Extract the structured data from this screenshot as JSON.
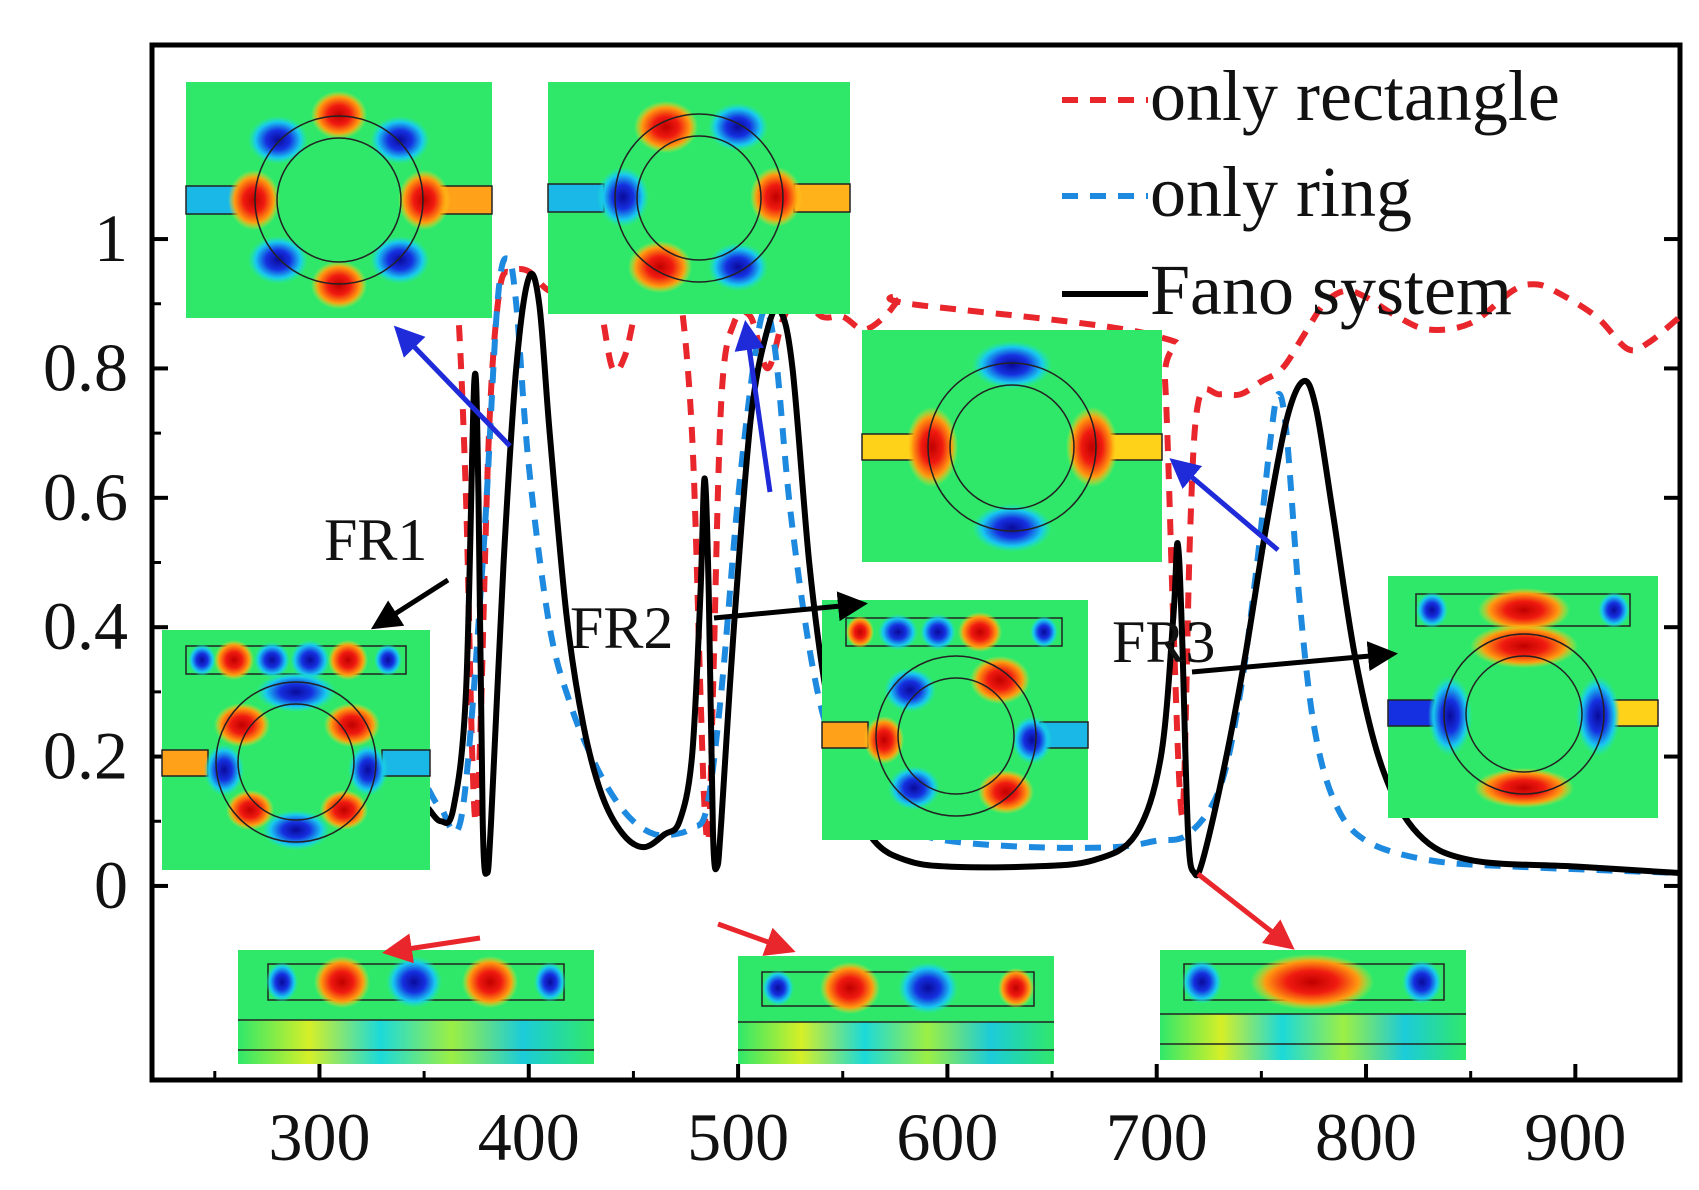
{
  "chart_data": {
    "type": "line",
    "title": "",
    "xlabel": "",
    "ylabel": "",
    "xlim": [
      220,
      950
    ],
    "ylim": [
      -0.3,
      1.3
    ],
    "xticks": [
      300,
      400,
      500,
      600,
      700,
      800,
      900
    ],
    "xtick_labels": [
      "300",
      "400",
      "500",
      "600",
      "700",
      "800",
      "900"
    ],
    "yticks": [
      0,
      0.2,
      0.4,
      0.6,
      0.8,
      1
    ],
    "ytick_labels": [
      "0",
      "0.2",
      "0.4",
      "0.6",
      "0.8",
      "1"
    ],
    "grid": false,
    "legend_position": "top-right",
    "series": [
      {
        "name": "only rectangle",
        "color": "#e8262b",
        "dash": "dashed",
        "points": [
          [
            362,
            0.95
          ],
          [
            366,
            0.9
          ],
          [
            370,
            0.6
          ],
          [
            373,
            0.2
          ],
          [
            375,
            0.1
          ],
          [
            377,
            0.25
          ],
          [
            381,
            0.7
          ],
          [
            386,
            0.92
          ],
          [
            392,
            0.95
          ],
          [
            400,
            0.95
          ],
          [
            410,
            0.92
          ],
          [
            420,
            0.93
          ],
          [
            428,
            0.95
          ],
          [
            434,
            0.9
          ],
          [
            440,
            0.8
          ],
          [
            446,
            0.82
          ],
          [
            452,
            0.9
          ],
          [
            460,
            0.95
          ],
          [
            466,
            0.95
          ],
          [
            472,
            0.92
          ],
          [
            478,
            0.7
          ],
          [
            482,
            0.3
          ],
          [
            484,
            0.12
          ],
          [
            486,
            0.08
          ],
          [
            488,
            0.3
          ],
          [
            492,
            0.75
          ],
          [
            498,
            0.87
          ],
          [
            506,
            0.88
          ],
          [
            514,
            0.8
          ],
          [
            522,
            0.88
          ],
          [
            530,
            0.91
          ],
          [
            540,
            0.88
          ],
          [
            550,
            0.88
          ],
          [
            560,
            0.86
          ],
          [
            570,
            0.88
          ],
          [
            578,
            0.91
          ],
          [
            582,
            0.9
          ],
          [
            700,
            0.85
          ],
          [
            704,
            0.78
          ],
          [
            708,
            0.4
          ],
          [
            711,
            0.15
          ],
          [
            713,
            0.15
          ],
          [
            716,
            0.55
          ],
          [
            720,
            0.75
          ],
          [
            730,
            0.76
          ],
          [
            740,
            0.76
          ],
          [
            750,
            0.78
          ],
          [
            760,
            0.8
          ],
          [
            770,
            0.85
          ],
          [
            780,
            0.9
          ],
          [
            790,
            0.92
          ],
          [
            800,
            0.91
          ],
          [
            815,
            0.88
          ],
          [
            830,
            0.86
          ],
          [
            850,
            0.87
          ],
          [
            870,
            0.92
          ],
          [
            880,
            0.93
          ],
          [
            890,
            0.92
          ],
          [
            910,
            0.88
          ],
          [
            925,
            0.83
          ],
          [
            935,
            0.84
          ],
          [
            950,
            0.88
          ]
        ]
      },
      {
        "name": "only ring",
        "color": "#1d8ae0",
        "dash": "dashed",
        "points": [
          [
            352,
            0.15
          ],
          [
            358,
            0.12
          ],
          [
            368,
            0.11
          ],
          [
            378,
            0.5
          ],
          [
            385,
            0.9
          ],
          [
            390,
            0.97
          ],
          [
            394,
            0.9
          ],
          [
            400,
            0.65
          ],
          [
            410,
            0.4
          ],
          [
            420,
            0.28
          ],
          [
            430,
            0.2
          ],
          [
            440,
            0.14
          ],
          [
            450,
            0.1
          ],
          [
            460,
            0.08
          ],
          [
            470,
            0.08
          ],
          [
            478,
            0.09
          ],
          [
            485,
            0.12
          ],
          [
            492,
            0.3
          ],
          [
            500,
            0.6
          ],
          [
            508,
            0.82
          ],
          [
            513,
            0.89
          ],
          [
            518,
            0.82
          ],
          [
            525,
            0.58
          ],
          [
            535,
            0.35
          ],
          [
            545,
            0.22
          ],
          [
            560,
            0.14
          ],
          [
            580,
            0.09
          ],
          [
            600,
            0.07
          ],
          [
            640,
            0.06
          ],
          [
            680,
            0.06
          ],
          [
            700,
            0.07
          ],
          [
            715,
            0.08
          ],
          [
            730,
            0.15
          ],
          [
            740,
            0.3
          ],
          [
            748,
            0.5
          ],
          [
            754,
            0.68
          ],
          [
            758,
            0.76
          ],
          [
            762,
            0.7
          ],
          [
            768,
            0.45
          ],
          [
            775,
            0.25
          ],
          [
            785,
            0.13
          ],
          [
            800,
            0.07
          ],
          [
            830,
            0.04
          ],
          [
            870,
            0.03
          ],
          [
            950,
            0.02
          ]
        ]
      },
      {
        "name": "Fano system",
        "color": "#000000",
        "dash": "solid",
        "points": [
          [
            352,
            0.12
          ],
          [
            358,
            0.1
          ],
          [
            364,
            0.12
          ],
          [
            370,
            0.3
          ],
          [
            374,
            0.78
          ],
          [
            376,
            0.6
          ],
          [
            378,
            0.1
          ],
          [
            380,
            0.02
          ],
          [
            382,
            0.1
          ],
          [
            388,
            0.5
          ],
          [
            394,
            0.8
          ],
          [
            400,
            0.94
          ],
          [
            405,
            0.9
          ],
          [
            410,
            0.7
          ],
          [
            418,
            0.42
          ],
          [
            426,
            0.25
          ],
          [
            435,
            0.14
          ],
          [
            445,
            0.08
          ],
          [
            455,
            0.06
          ],
          [
            465,
            0.08
          ],
          [
            472,
            0.1
          ],
          [
            478,
            0.2
          ],
          [
            482,
            0.45
          ],
          [
            484,
            0.63
          ],
          [
            486,
            0.45
          ],
          [
            488,
            0.08
          ],
          [
            490,
            0.03
          ],
          [
            492,
            0.1
          ],
          [
            498,
            0.4
          ],
          [
            506,
            0.72
          ],
          [
            514,
            0.86
          ],
          [
            520,
            0.89
          ],
          [
            526,
            0.8
          ],
          [
            534,
            0.5
          ],
          [
            542,
            0.3
          ],
          [
            552,
            0.15
          ],
          [
            565,
            0.07
          ],
          [
            580,
            0.04
          ],
          [
            600,
            0.03
          ],
          [
            640,
            0.03
          ],
          [
            670,
            0.04
          ],
          [
            690,
            0.08
          ],
          [
            702,
            0.2
          ],
          [
            708,
            0.42
          ],
          [
            710,
            0.53
          ],
          [
            712,
            0.4
          ],
          [
            715,
            0.08
          ],
          [
            718,
            0.02
          ],
          [
            722,
            0.04
          ],
          [
            732,
            0.18
          ],
          [
            742,
            0.35
          ],
          [
            752,
            0.55
          ],
          [
            762,
            0.72
          ],
          [
            770,
            0.78
          ],
          [
            776,
            0.74
          ],
          [
            784,
            0.58
          ],
          [
            795,
            0.35
          ],
          [
            808,
            0.18
          ],
          [
            825,
            0.08
          ],
          [
            850,
            0.04
          ],
          [
            900,
            0.03
          ],
          [
            950,
            0.02
          ]
        ]
      }
    ],
    "annotations": [
      {
        "label": "FR1",
        "x": 374,
        "y": 0.78,
        "target": "field-map-fr1"
      },
      {
        "label": "FR2",
        "x": 484,
        "y": 0.63,
        "target": "field-map-fr2"
      },
      {
        "label": "FR3",
        "x": 710,
        "y": 0.53,
        "target": "field-map-fr3"
      }
    ]
  },
  "legend": {
    "rect_label": "only rectangle",
    "ring_label": "only ring",
    "fano_label": "Fano system"
  },
  "annotation_labels": {
    "fr1": "FR1",
    "fr2": "FR2",
    "fr3": "FR3"
  },
  "colors": {
    "rect": "#e8262b",
    "ring": "#1d8ae0",
    "fano": "#000000",
    "blue_arrow": "#1f2bd8",
    "red_arrow": "#e8262b",
    "field_bg": "#2fe86a",
    "field_red": "#e01010",
    "field_blue": "#1020d0",
    "field_yellow": "#ffd21a"
  }
}
